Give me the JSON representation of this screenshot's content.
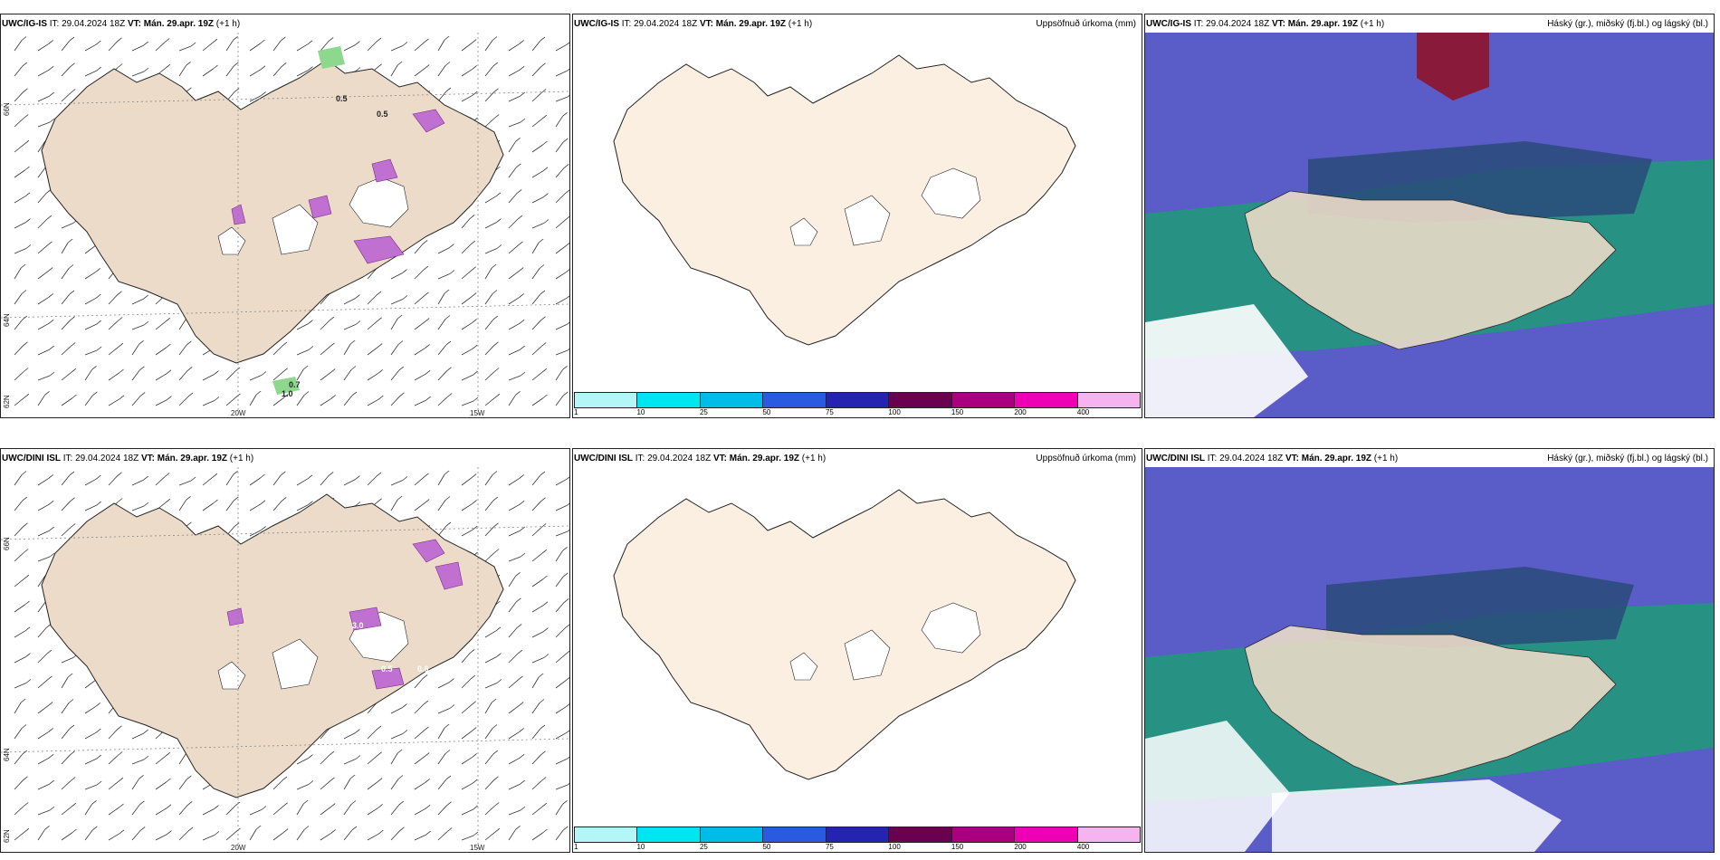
{
  "rows": [
    {
      "model": "UWC/IG-IS",
      "it_label": "IT:",
      "it_value": "29.04.2024 18Z",
      "vt_label": "VT:",
      "vt_value": "Mán. 29.apr. 19Z",
      "lead": "(+1 h)"
    },
    {
      "model": "UWC/DINI ISL",
      "it_label": "IT:",
      "it_value": "29.04.2024 18Z",
      "vt_label": "VT:",
      "vt_value": "Mán. 29.apr. 19Z",
      "lead": "(+1 h)"
    }
  ],
  "precip_title": "Uppsöfnuð úrkoma (mm)",
  "cloud_title": "Háský (gr.), miðský (fj.bl.) og lágský (bl.)",
  "axes": {
    "lat_66": "66N",
    "lat_64": "64N",
    "lat_62": "62N",
    "lon_20": "20W",
    "lon_15": "15W"
  },
  "colorbar": {
    "ticks": [
      "1",
      "10",
      "25",
      "50",
      "75",
      "100",
      "150",
      "200",
      "400"
    ],
    "colors": [
      "#b4f5f8",
      "#00e6f0",
      "#00bde8",
      "#2a5ae0",
      "#2424b0",
      "#6a0050",
      "#a8007e",
      "#f000b4",
      "#f5b4f0"
    ]
  },
  "map_labels_top": [
    "0.7",
    "1.0",
    "0.5",
    "0.5"
  ],
  "map_labels_bottom": [
    "3.0",
    "0.5",
    "0.6"
  ],
  "colors": {
    "land": "#ebdbc8",
    "land_precip": "#fbefe2",
    "coast": "#222222",
    "cloud_high": "#5a5cc8",
    "cloud_mid": "#1e9a78",
    "cloud_low": "#2a3a8a"
  }
}
